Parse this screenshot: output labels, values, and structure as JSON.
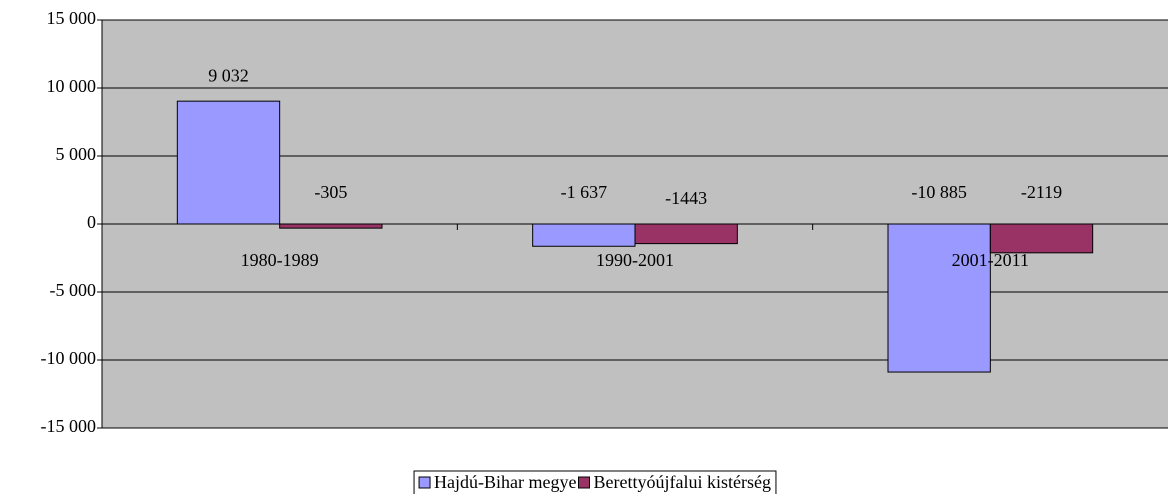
{
  "chart_data": {
    "type": "bar",
    "categories": [
      "1980-1989",
      "1990-2001",
      "2001-2011"
    ],
    "series": [
      {
        "name": "Hajdú-Bihar megye",
        "color": "#9999ff",
        "values": [
          9032,
          -1637,
          -10885
        ],
        "value_labels": [
          "9 032",
          "-1 637",
          "-10 885"
        ]
      },
      {
        "name": "Berettyóújfalui kistérség",
        "color": "#993366",
        "values": [
          -305,
          -1443,
          -2119
        ],
        "value_labels": [
          "-305",
          "-1443",
          "-2119"
        ]
      }
    ],
    "ylim": [
      -15000,
      15000
    ],
    "yticks": [
      {
        "value": -15000,
        "label": "-15 000"
      },
      {
        "value": -10000,
        "label": "-10 000"
      },
      {
        "value": -5000,
        "label": "-5 000"
      },
      0,
      {
        "value": 5000,
        "label": "5 000"
      },
      {
        "value": 10000,
        "label": "10 000"
      },
      {
        "value": 15000,
        "label": "15 000"
      }
    ],
    "grid": true,
    "legend": "bottom"
  }
}
